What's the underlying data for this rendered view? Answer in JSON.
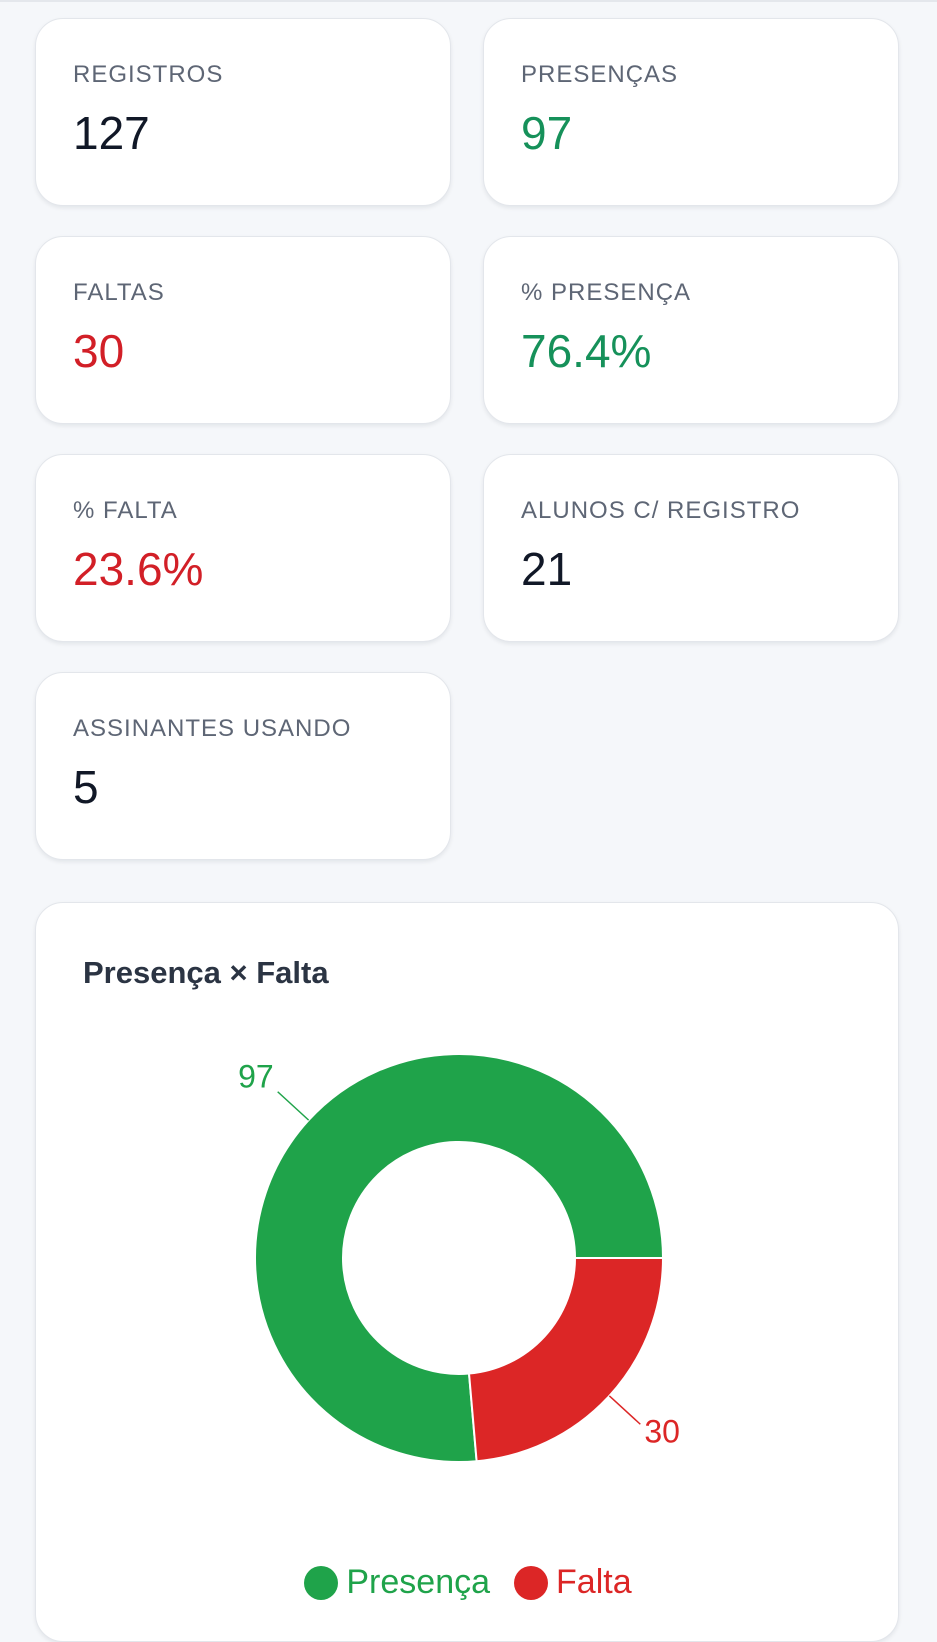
{
  "stats": [
    {
      "label": "REGISTROS",
      "value": "127",
      "tone": "default"
    },
    {
      "label": "PRESENÇAS",
      "value": "97",
      "tone": "green"
    },
    {
      "label": "FALTAS",
      "value": "30",
      "tone": "red"
    },
    {
      "label": "% PRESENÇA",
      "value": "76.4%",
      "tone": "green"
    },
    {
      "label": "% FALTA",
      "value": "23.6%",
      "tone": "red"
    },
    {
      "label": "ALUNOS C/ REGISTRO",
      "value": "21",
      "tone": "default"
    },
    {
      "label": "ASSINANTES USANDO",
      "value": "5",
      "tone": "default"
    }
  ],
  "chart_data": {
    "type": "pie",
    "title": "Presença × Falta",
    "donut": true,
    "categories": [
      "Presença",
      "Falta"
    ],
    "values": [
      97,
      30
    ],
    "colors": [
      "#1fa34a",
      "#dc2626"
    ],
    "data_labels": [
      "97",
      "30"
    ],
    "legend": "bottom"
  }
}
